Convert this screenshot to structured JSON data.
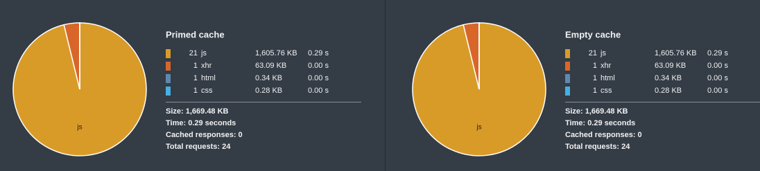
{
  "chart_data": [
    {
      "type": "pie",
      "title": "Primed cache",
      "categories": [
        "js",
        "xhr",
        "html",
        "css"
      ],
      "colors": [
        "#d99b28",
        "#d96629",
        "#5e88b0",
        "#46afe3"
      ],
      "counts": [
        21,
        1,
        1,
        1
      ],
      "values": [
        1605.76,
        63.09,
        0.34,
        0.28
      ],
      "value_labels": [
        "1,605.76 KB",
        "63.09 KB",
        "0.34 KB",
        "0.28 KB"
      ],
      "times": [
        "0.29 s",
        "0.00 s",
        "0.00 s",
        "0.00 s"
      ],
      "summary": [
        "Size: 1,669.48 KB",
        "Time: 0.29 seconds",
        "Cached responses: 0",
        "Total requests: 24"
      ]
    },
    {
      "type": "pie",
      "title": "Empty cache",
      "categories": [
        "js",
        "xhr",
        "html",
        "css"
      ],
      "colors": [
        "#d99b28",
        "#d96629",
        "#5e88b0",
        "#46afe3"
      ],
      "counts": [
        21,
        1,
        1,
        1
      ],
      "values": [
        1605.76,
        63.09,
        0.34,
        0.28
      ],
      "value_labels": [
        "1,605.76 KB",
        "63.09 KB",
        "0.34 KB",
        "0.28 KB"
      ],
      "times": [
        "0.29 s",
        "0.00 s",
        "0.00 s",
        "0.00 s"
      ],
      "summary": [
        "Size: 1,669.48 KB",
        "Time: 0.29 seconds",
        "Cached responses: 0",
        "Total requests: 24"
      ]
    }
  ]
}
